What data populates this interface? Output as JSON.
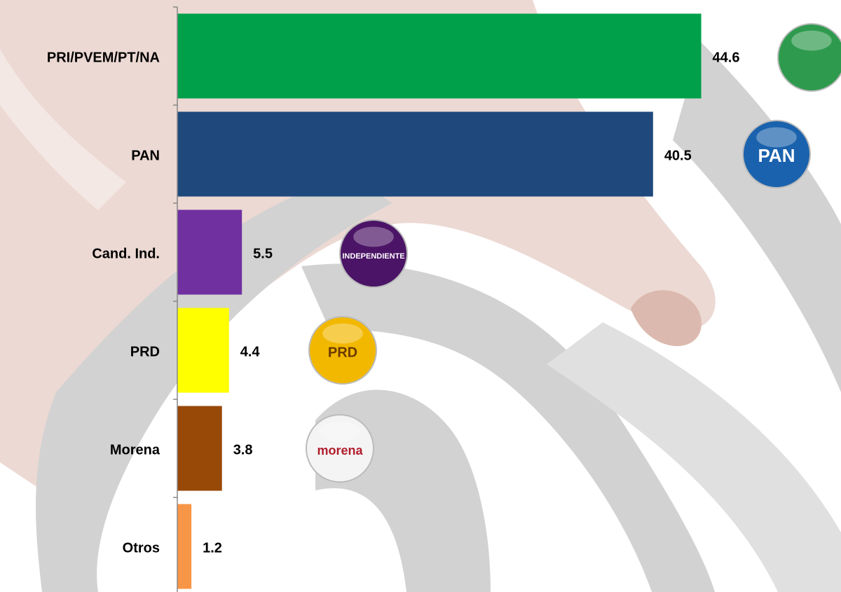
{
  "chart_data": {
    "type": "hbar",
    "categories": [
      "PRI/PVEM/PT/NA",
      "PAN",
      "Cand. Ind.",
      "PRD",
      "Morena",
      "Otros"
    ],
    "values": [
      44.6,
      40.5,
      5.5,
      4.4,
      3.8,
      1.2
    ],
    "colors": [
      "#00a04b",
      "#1f497d",
      "#7030a0",
      "#ffff00",
      "#984807",
      "#f79646"
    ],
    "xlim": [
      0,
      56.5
    ],
    "logo_labels": [
      null,
      "PAN",
      "INDEPENDIENTE",
      "PRD",
      "morena",
      null
    ]
  }
}
